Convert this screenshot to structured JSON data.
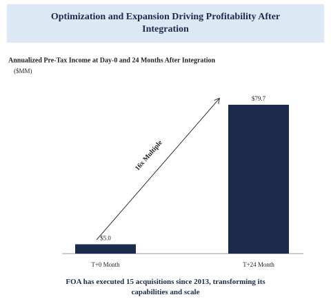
{
  "chart_data": {
    "type": "bar",
    "title": "Optimization and Expansion Driving Profitability After Integration",
    "subtitle": "Annualized Pre-Tax Income at Day-0 and 24 Months After Integration",
    "unit": "($MM)",
    "categories": [
      "T+0 Month",
      "T+24 Month"
    ],
    "values": [
      5.0,
      79.7
    ],
    "value_labels": [
      "$5.0",
      "$79.7"
    ],
    "color": "#1c2b4b",
    "annotation": "16x Multiple",
    "footnote": "FOA has executed 15 acquisitions since 2013, transforming its capabilities and scale"
  }
}
